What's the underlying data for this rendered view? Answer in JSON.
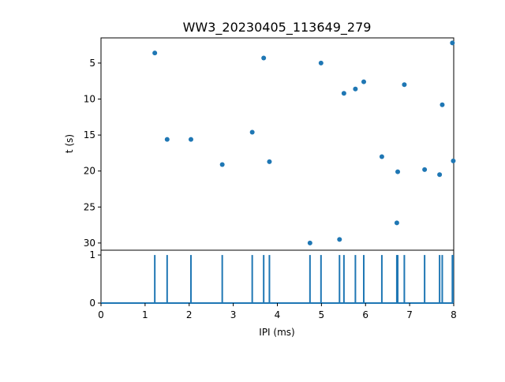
{
  "chart_data": [
    {
      "type": "scatter",
      "title": "WW3_20230405_113649_279",
      "xlabel": "",
      "ylabel": "t (s)",
      "xlim": [
        0,
        8
      ],
      "ylim": [
        31,
        1.5
      ],
      "y_inverted": true,
      "y_ticks": [
        5,
        10,
        15,
        20,
        25,
        30
      ],
      "grid": false,
      "color": "#1f77b4",
      "x": [
        1.22,
        1.5,
        2.04,
        2.75,
        3.43,
        3.69,
        3.82,
        4.74,
        4.99,
        5.41,
        5.51,
        5.77,
        5.96,
        6.37,
        6.71,
        6.73,
        6.88,
        7.34,
        7.68,
        7.74,
        7.97,
        7.99
      ],
      "y": [
        3.6,
        15.6,
        15.6,
        19.1,
        14.6,
        4.3,
        18.7,
        30.0,
        5.0,
        29.5,
        9.2,
        8.6,
        7.6,
        18.0,
        27.2,
        20.1,
        8.0,
        19.8,
        20.5,
        10.8,
        2.2,
        18.6
      ]
    },
    {
      "type": "line",
      "xlabel": "IPI (ms)",
      "ylabel": "",
      "xlim": [
        0,
        8
      ],
      "ylim": [
        0,
        1.1
      ],
      "x_ticks": [
        0,
        1,
        2,
        3,
        4,
        5,
        6,
        7,
        8
      ],
      "y_ticks": [
        0,
        1
      ],
      "grid": false,
      "color": "#1f77b4",
      "spikes_at": [
        1.22,
        1.5,
        2.04,
        2.75,
        3.43,
        3.69,
        3.82,
        4.74,
        4.99,
        5.41,
        5.51,
        5.77,
        5.96,
        6.37,
        6.71,
        6.73,
        6.88,
        7.34,
        7.68,
        7.74,
        7.97,
        7.99
      ],
      "spike_height": 1
    }
  ]
}
